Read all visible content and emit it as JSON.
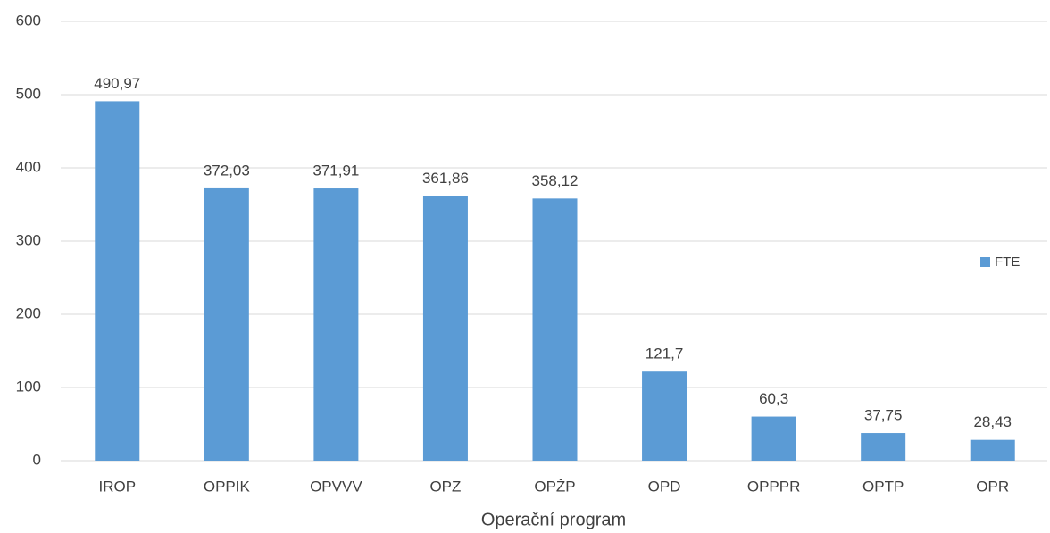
{
  "chart_data": {
    "type": "bar",
    "categories": [
      "IROP",
      "OPPIK",
      "OPVVV",
      "OPZ",
      "OPŽP",
      "OPD",
      "OPPPR",
      "OPTP",
      "OPR"
    ],
    "series": [
      {
        "name": "FTE",
        "color": "#5b9bd5",
        "values": [
          490.97,
          372.03,
          371.91,
          361.86,
          358.12,
          121.7,
          60.3,
          37.75,
          28.43
        ],
        "value_labels": [
          "490,97",
          "372,03",
          "371,91",
          "361,86",
          "358,12",
          "121,7",
          "60,3",
          "37,75",
          "28,43"
        ]
      }
    ],
    "x_label": "Operační program",
    "ylim": [
      0,
      600
    ],
    "yticks": [
      0,
      100,
      200,
      300,
      400,
      500,
      600
    ],
    "grid": true,
    "legend": "right"
  }
}
